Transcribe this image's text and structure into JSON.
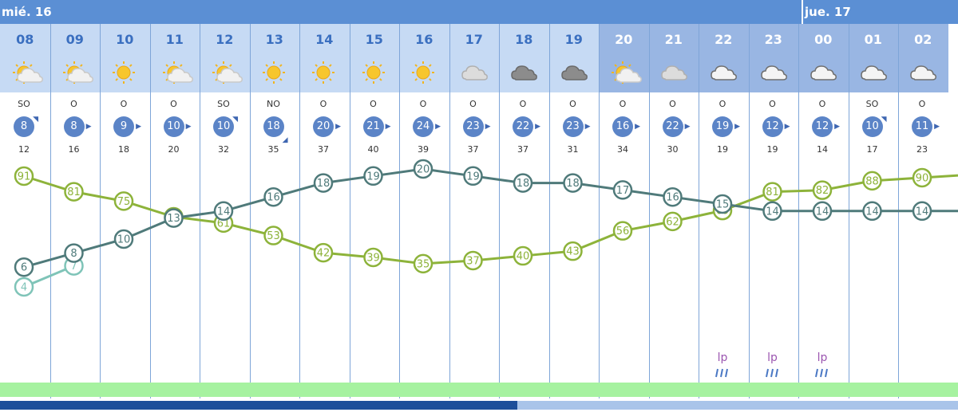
{
  "days": [
    {
      "label": "mié. 16"
    },
    {
      "label": "jue. 17"
    }
  ],
  "hours": [
    {
      "label": "08",
      "icon": "sun-cloud-icon",
      "dir": "SO",
      "speed": "8",
      "arrow": "up-right",
      "gust": "12",
      "night": false
    },
    {
      "label": "09",
      "icon": "sun-cloud-icon",
      "dir": "O",
      "speed": "8",
      "arrow": "right",
      "gust": "16",
      "night": false
    },
    {
      "label": "10",
      "icon": "sun-icon",
      "dir": "O",
      "speed": "9",
      "arrow": "right",
      "gust": "18",
      "night": false
    },
    {
      "label": "11",
      "icon": "sun-cloud-icon",
      "dir": "O",
      "speed": "10",
      "arrow": "right",
      "gust": "20",
      "night": false
    },
    {
      "label": "12",
      "icon": "sun-cloud-icon",
      "dir": "SO",
      "speed": "10",
      "arrow": "up-right",
      "gust": "32",
      "night": false
    },
    {
      "label": "13",
      "icon": "sun-icon",
      "dir": "NO",
      "speed": "18",
      "arrow": "down-right",
      "gust": "35",
      "night": false
    },
    {
      "label": "14",
      "icon": "sun-icon",
      "dir": "O",
      "speed": "20",
      "arrow": "right",
      "gust": "37",
      "night": false
    },
    {
      "label": "15",
      "icon": "sun-icon",
      "dir": "O",
      "speed": "21",
      "arrow": "right",
      "gust": "40",
      "night": false
    },
    {
      "label": "16",
      "icon": "sun-icon",
      "dir": "O",
      "speed": "24",
      "arrow": "right",
      "gust": "39",
      "night": false
    },
    {
      "label": "17",
      "icon": "light-cloud-icon",
      "dir": "O",
      "speed": "23",
      "arrow": "right",
      "gust": "37",
      "night": false
    },
    {
      "label": "18",
      "icon": "dark-cloud-icon",
      "dir": "O",
      "speed": "22",
      "arrow": "right",
      "gust": "37",
      "night": false
    },
    {
      "label": "19",
      "icon": "dark-cloud-icon",
      "dir": "O",
      "speed": "23",
      "arrow": "right",
      "gust": "31",
      "night": false
    },
    {
      "label": "20",
      "icon": "sun-cloud-icon",
      "dir": "O",
      "speed": "16",
      "arrow": "right",
      "gust": "34",
      "night": true
    },
    {
      "label": "21",
      "icon": "light-cloud-icon",
      "dir": "O",
      "speed": "22",
      "arrow": "right",
      "gust": "30",
      "night": true
    },
    {
      "label": "22",
      "icon": "night-cloud-icon",
      "dir": "O",
      "speed": "19",
      "arrow": "right",
      "gust": "19",
      "night": true
    },
    {
      "label": "23",
      "icon": "night-cloud-icon",
      "dir": "O",
      "speed": "12",
      "arrow": "right",
      "gust": "19",
      "night": true
    },
    {
      "label": "00",
      "icon": "night-cloud-icon",
      "dir": "O",
      "speed": "12",
      "arrow": "right",
      "gust": "14",
      "night": true
    },
    {
      "label": "01",
      "icon": "night-cloud-icon",
      "dir": "SO",
      "speed": "10",
      "arrow": "up-right",
      "gust": "17",
      "night": true
    },
    {
      "label": "02",
      "icon": "night-cloud-icon",
      "dir": "O",
      "speed": "11",
      "arrow": "right",
      "gust": "23",
      "night": true
    }
  ],
  "precip": [
    {
      "hour_index": 14,
      "label": "lp"
    },
    {
      "hour_index": 15,
      "label": "lp"
    },
    {
      "hour_index": 16,
      "label": "lp"
    }
  ],
  "colors": {
    "humidity": "#8db33a",
    "temperature": "#4f7a7a",
    "feels_like": "#7fc4b8",
    "day_bar": "#5b8fd4",
    "header_day": "#c6daf4",
    "header_night": "#99b6e3"
  },
  "scroll": {
    "position": 0.54
  },
  "chart_data": [
    {
      "type": "line",
      "x": [
        "08",
        "09",
        "10",
        "11",
        "12",
        "13",
        "14",
        "15",
        "16",
        "17",
        "18",
        "19",
        "20",
        "21",
        "22",
        "23",
        "00",
        "01",
        "02"
      ],
      "series": [
        {
          "values": [
            91,
            81,
            75,
            65,
            61,
            53,
            42,
            39,
            35,
            37,
            40,
            43,
            56,
            62,
            69,
            81,
            82,
            88,
            90
          ]
        },
        {
          "values": [
            6,
            8,
            10,
            13,
            14,
            16,
            18,
            19,
            20,
            19,
            18,
            18,
            17,
            16,
            15,
            14,
            14,
            14,
            14
          ]
        },
        {
          "values": [
            4,
            7,
            null,
            null,
            null,
            null,
            null,
            null,
            null,
            null,
            null,
            null,
            null,
            null,
            null,
            null,
            null,
            null,
            null
          ]
        }
      ]
    }
  ]
}
